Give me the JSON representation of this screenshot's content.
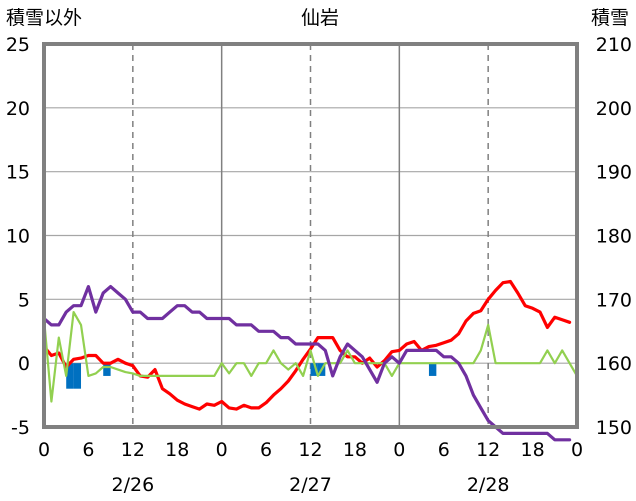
{
  "chart_data": {
    "type": "line",
    "title": "仙岩",
    "left_axis_title": "積雪以外",
    "right_axis_title": "積雪",
    "left_axis": {
      "min": -5,
      "max": 25,
      "ticks": [
        25,
        20,
        15,
        10,
        5,
        0,
        -5
      ]
    },
    "right_axis": {
      "min": 150,
      "max": 210,
      "ticks": [
        210,
        200,
        190,
        180,
        170,
        160,
        150
      ]
    },
    "x_axis": {
      "min": 0,
      "max": 72,
      "tick_labels": [
        "0",
        "6",
        "12",
        "18",
        "0",
        "6",
        "12",
        "18",
        "0",
        "6",
        "12",
        "18",
        "0"
      ],
      "date_labels": [
        {
          "label": "2/26",
          "hour": 12
        },
        {
          "label": "2/27",
          "hour": 36
        },
        {
          "label": "2/28",
          "hour": 60
        }
      ],
      "day_boundaries": [
        24,
        48
      ],
      "dashed_gridlines": [
        12,
        36,
        60
      ]
    },
    "colors": {
      "temperature": "#ff0000",
      "wind": "#92d050",
      "snow_depth": "#7030a0",
      "precipitation": "#0070c0",
      "frame": "#808080"
    },
    "series": [
      {
        "name": "temperature",
        "axis": "left",
        "points": [
          [
            0,
            1.3
          ],
          [
            1,
            0.6
          ],
          [
            2,
            0.8
          ],
          [
            3,
            -0.3
          ],
          [
            4,
            0.3
          ],
          [
            5,
            0.4
          ],
          [
            6,
            0.6
          ],
          [
            7,
            0.6
          ],
          [
            8,
            0.0
          ],
          [
            9,
            0.0
          ],
          [
            10,
            0.3
          ],
          [
            11,
            0.0
          ],
          [
            12,
            -0.2
          ],
          [
            13,
            -1.0
          ],
          [
            14,
            -1.1
          ],
          [
            15,
            -0.5
          ],
          [
            16,
            -2.0
          ],
          [
            17,
            -2.4
          ],
          [
            18,
            -2.9
          ],
          [
            19,
            -3.2
          ],
          [
            20,
            -3.4
          ],
          [
            21,
            -3.6
          ],
          [
            22,
            -3.2
          ],
          [
            23,
            -3.3
          ],
          [
            24,
            -3.0
          ],
          [
            25,
            -3.5
          ],
          [
            26,
            -3.6
          ],
          [
            27,
            -3.3
          ],
          [
            28,
            -3.5
          ],
          [
            29,
            -3.5
          ],
          [
            30,
            -3.1
          ],
          [
            31,
            -2.5
          ],
          [
            32,
            -2.0
          ],
          [
            33,
            -1.4
          ],
          [
            34,
            -0.6
          ],
          [
            35,
            0.3
          ],
          [
            36,
            1.1
          ],
          [
            37,
            2.0
          ],
          [
            38,
            2.0
          ],
          [
            39,
            2.0
          ],
          [
            40,
            1.0
          ],
          [
            41,
            0.5
          ],
          [
            42,
            0.5
          ],
          [
            43,
            0.0
          ],
          [
            44,
            0.4
          ],
          [
            45,
            -0.3
          ],
          [
            46,
            0.2
          ],
          [
            47,
            0.9
          ],
          [
            48,
            1.0
          ],
          [
            49,
            1.5
          ],
          [
            50,
            1.7
          ],
          [
            51,
            1.0
          ],
          [
            52,
            1.3
          ],
          [
            53,
            1.4
          ],
          [
            54,
            1.6
          ],
          [
            55,
            1.8
          ],
          [
            56,
            2.3
          ],
          [
            57,
            3.3
          ],
          [
            58,
            3.9
          ],
          [
            59,
            4.1
          ],
          [
            60,
            5.0
          ],
          [
            61,
            5.7
          ],
          [
            62,
            6.3
          ],
          [
            63,
            6.4
          ],
          [
            64,
            5.5
          ],
          [
            65,
            4.5
          ],
          [
            66,
            4.3
          ],
          [
            67,
            4.0
          ],
          [
            68,
            2.8
          ],
          [
            69,
            3.6
          ],
          [
            70,
            3.4
          ],
          [
            71,
            3.2
          ]
        ]
      },
      {
        "name": "wind",
        "axis": "left",
        "points": [
          [
            0,
            3.5
          ],
          [
            1,
            -3.0
          ],
          [
            2,
            2.0
          ],
          [
            3,
            -1.0
          ],
          [
            4,
            4.0
          ],
          [
            5,
            3.0
          ],
          [
            6,
            -1.0
          ],
          [
            7,
            -0.8
          ],
          [
            8,
            -0.3
          ],
          [
            9,
            -0.3
          ],
          [
            10,
            -0.5
          ],
          [
            11,
            -0.7
          ],
          [
            12,
            -0.8
          ],
          [
            13,
            -1.0
          ],
          [
            14,
            -1.0
          ],
          [
            15,
            -1.0
          ],
          [
            16,
            -1.0
          ],
          [
            17,
            -1.0
          ],
          [
            18,
            -1.0
          ],
          [
            19,
            -1.0
          ],
          [
            20,
            -1.0
          ],
          [
            21,
            -1.0
          ],
          [
            22,
            -1.0
          ],
          [
            23,
            -1.0
          ],
          [
            24,
            0.0
          ],
          [
            25,
            -0.8
          ],
          [
            26,
            0.0
          ],
          [
            27,
            0.0
          ],
          [
            28,
            -1.0
          ],
          [
            29,
            0.0
          ],
          [
            30,
            0.0
          ],
          [
            31,
            1.0
          ],
          [
            32,
            0.0
          ],
          [
            33,
            -0.5
          ],
          [
            34,
            0.0
          ],
          [
            35,
            -1.0
          ],
          [
            36,
            1.0
          ],
          [
            37,
            -1.0
          ],
          [
            38,
            0.0
          ],
          [
            39,
            0.0
          ],
          [
            40,
            0.0
          ],
          [
            41,
            1.0
          ],
          [
            42,
            0.0
          ],
          [
            43,
            0.0
          ],
          [
            44,
            0.0
          ],
          [
            45,
            0.0
          ],
          [
            46,
            0.0
          ],
          [
            47,
            -1.0
          ],
          [
            48,
            0.0
          ],
          [
            49,
            0.0
          ],
          [
            50,
            0.0
          ],
          [
            51,
            0.0
          ],
          [
            52,
            0.0
          ],
          [
            53,
            0.0
          ],
          [
            54,
            0.0
          ],
          [
            55,
            0.0
          ],
          [
            56,
            0.0
          ],
          [
            57,
            0.0
          ],
          [
            58,
            0.0
          ],
          [
            59,
            1.0
          ],
          [
            60,
            3.0
          ],
          [
            61,
            0.0
          ],
          [
            62,
            0.0
          ],
          [
            63,
            0.0
          ],
          [
            64,
            0.0
          ],
          [
            65,
            0.0
          ],
          [
            66,
            0.0
          ],
          [
            67,
            0.0
          ],
          [
            68,
            1.0
          ],
          [
            69,
            0.0
          ],
          [
            70,
            1.0
          ],
          [
            71,
            0.0
          ],
          [
            72,
            -1.0
          ]
        ]
      },
      {
        "name": "snow_depth",
        "axis": "right",
        "points": [
          [
            0,
            167
          ],
          [
            1,
            166
          ],
          [
            2,
            166
          ],
          [
            3,
            168
          ],
          [
            4,
            169
          ],
          [
            5,
            169
          ],
          [
            6,
            172
          ],
          [
            7,
            168
          ],
          [
            8,
            171
          ],
          [
            9,
            172
          ],
          [
            10,
            171
          ],
          [
            11,
            170
          ],
          [
            12,
            168
          ],
          [
            13,
            168
          ],
          [
            14,
            167
          ],
          [
            15,
            167
          ],
          [
            16,
            167
          ],
          [
            17,
            168
          ],
          [
            18,
            169
          ],
          [
            19,
            169
          ],
          [
            20,
            168
          ],
          [
            21,
            168
          ],
          [
            22,
            167
          ],
          [
            23,
            167
          ],
          [
            24,
            167
          ],
          [
            25,
            167
          ],
          [
            26,
            166
          ],
          [
            27,
            166
          ],
          [
            28,
            166
          ],
          [
            29,
            165
          ],
          [
            30,
            165
          ],
          [
            31,
            165
          ],
          [
            32,
            164
          ],
          [
            33,
            164
          ],
          [
            34,
            163
          ],
          [
            35,
            163
          ],
          [
            36,
            163
          ],
          [
            37,
            163
          ],
          [
            38,
            162
          ],
          [
            39,
            158
          ],
          [
            40,
            161
          ],
          [
            41,
            163
          ],
          [
            42,
            162
          ],
          [
            43,
            161
          ],
          [
            44,
            159
          ],
          [
            45,
            157
          ],
          [
            46,
            160
          ],
          [
            47,
            161
          ],
          [
            48,
            160
          ],
          [
            49,
            162
          ],
          [
            50,
            162
          ],
          [
            51,
            162
          ],
          [
            52,
            162
          ],
          [
            53,
            162
          ],
          [
            54,
            161
          ],
          [
            55,
            161
          ],
          [
            56,
            160
          ],
          [
            57,
            158
          ],
          [
            58,
            155
          ],
          [
            59,
            153
          ],
          [
            60,
            151
          ],
          [
            61,
            150
          ],
          [
            62,
            149
          ],
          [
            63,
            149
          ],
          [
            64,
            149
          ],
          [
            65,
            149
          ],
          [
            66,
            149
          ],
          [
            67,
            149
          ],
          [
            68,
            149
          ],
          [
            69,
            148
          ],
          [
            70,
            148
          ],
          [
            71,
            148
          ]
        ]
      },
      {
        "name": "precipitation",
        "axis": "left",
        "style": "bar",
        "points": [
          [
            3.5,
            -2
          ],
          [
            4.5,
            -2
          ],
          [
            8.5,
            -1
          ],
          [
            36.5,
            -1
          ],
          [
            37.5,
            -1
          ],
          [
            52.5,
            -1
          ]
        ]
      }
    ]
  }
}
